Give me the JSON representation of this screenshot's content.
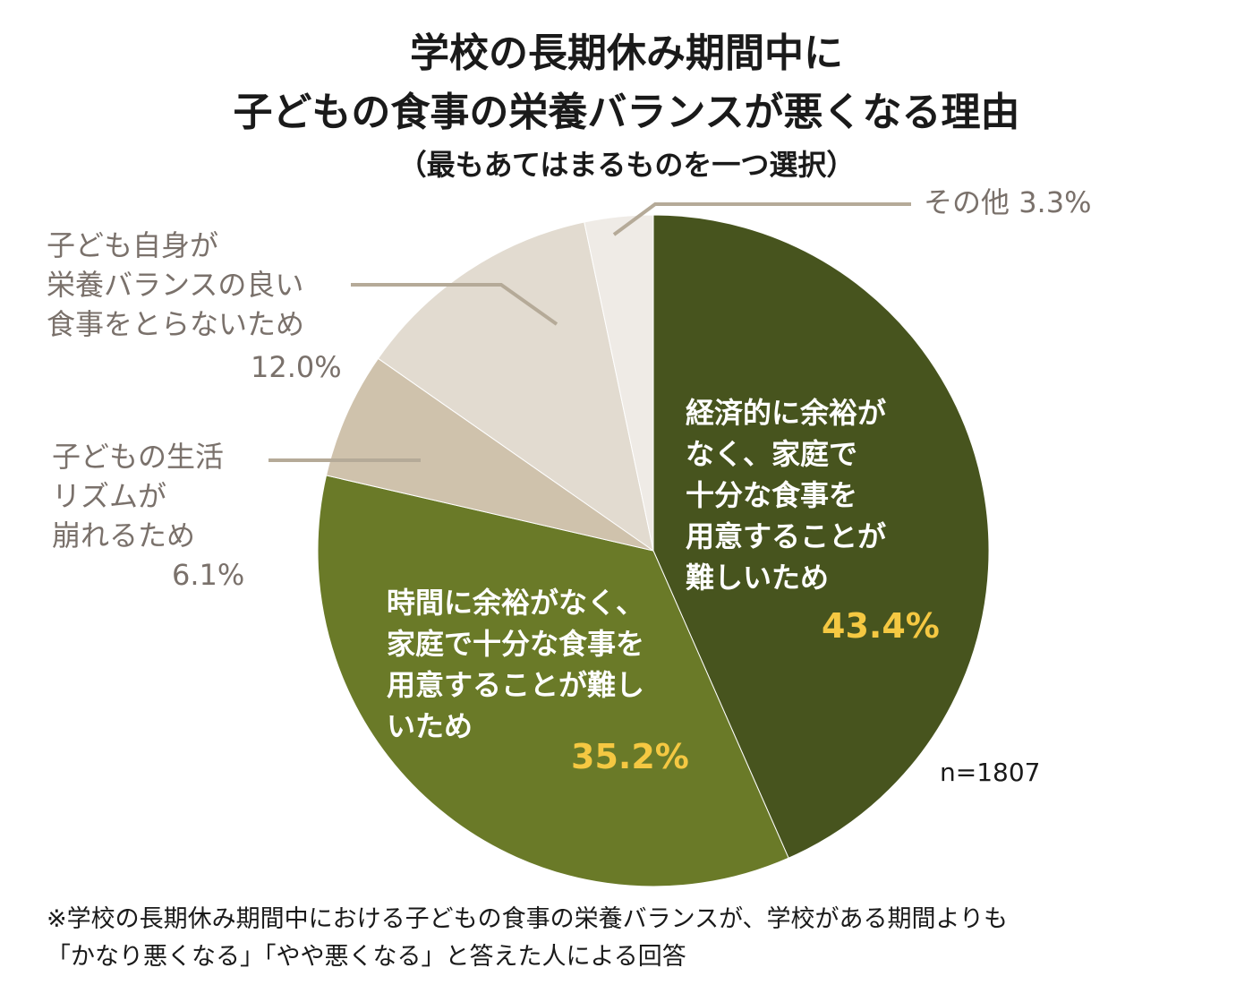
{
  "chart_data": {
    "type": "pie",
    "title": "学校の長期休み期間中に",
    "title_line2": "子どもの食事の栄養バランスが悪くなる理由",
    "subtitle": "（最もあてはまるものを一つ選択）",
    "sample_size": "n=1807",
    "slices": [
      {
        "label_lines": [
          "経済的に余裕が",
          "なく、家庭で",
          "十分な食事を",
          "用意することが",
          "難しいため"
        ],
        "value": 43.4,
        "value_label": "43.4%",
        "color": "#47541e"
      },
      {
        "label_lines": [
          "時間に余裕がなく、",
          "家庭で十分な食事を",
          "用意することが難し",
          "いため"
        ],
        "value": 35.2,
        "value_label": "35.2%",
        "color": "#6a7a28"
      },
      {
        "label_lines": [
          "子どもの生活",
          "リズムが",
          "崩れるため"
        ],
        "value": 6.1,
        "value_label": "6.1%",
        "color": "#cfc2ac"
      },
      {
        "label_lines": [
          "子ども自身が",
          "栄養バランスの良い",
          "食事をとらないため"
        ],
        "value": 12.0,
        "value_label": "12.0%",
        "color": "#e2dbd0"
      },
      {
        "label_lines": [
          "その他"
        ],
        "value": 3.3,
        "value_label": "3.3%",
        "color": "#efebe6"
      }
    ],
    "leader_color": "#b5aa98",
    "label_color": "#7a716b",
    "inside_label_color": "#ffffff",
    "inside_value_color": "#f5c842"
  },
  "footnote": {
    "line1": "※学校の長期休み期間中における子どもの食事の栄養バランスが、学校がある期間よりも",
    "line2": "「かなり悪くなる」「やや悪くなる」と答えた人による回答"
  }
}
